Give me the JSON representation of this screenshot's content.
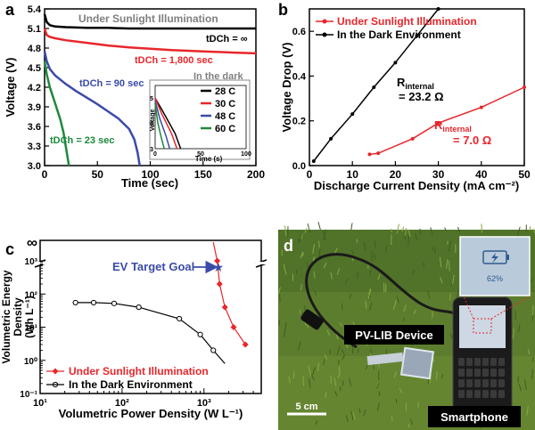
{
  "panels": {
    "a": "a",
    "b": "b",
    "c": "c",
    "d": "d"
  },
  "chart_data": [
    {
      "panel": "a",
      "type": "line",
      "xlabel": "Time (sec)",
      "ylabel": "Voltage (V)",
      "xlim": [
        0,
        200
      ],
      "ylim": [
        3.0,
        5.4
      ],
      "xticks": [
        "0",
        "50",
        "100",
        "150",
        "200"
      ],
      "yticks": [
        "3.0",
        "3.3",
        "3.6",
        "3.9",
        "4.2",
        "4.5",
        "4.8",
        "5.1",
        "5.4"
      ],
      "annotations": {
        "sunlight": "Under Sunlight Illumination",
        "dark": "In the dark",
        "t_inf": "tDCh = ∞",
        "t_1800": "tDCh = 1,800 sec",
        "t_90": "tDCh = 90 sec",
        "t_23": "tDCh = 23 sec"
      },
      "legend": [
        "28 C",
        "30 C",
        "48 C",
        "60 C"
      ],
      "series": [
        {
          "name": "28 C",
          "color": "#000000",
          "x": [
            0,
            2,
            5,
            10,
            20,
            40,
            60,
            80,
            100,
            120,
            150,
            180,
            200
          ],
          "y": [
            5.32,
            5.2,
            5.15,
            5.13,
            5.12,
            5.11,
            5.11,
            5.1,
            5.1,
            5.1,
            5.1,
            5.1,
            5.1
          ]
        },
        {
          "name": "30 C",
          "color": "#e8262b",
          "x": [
            0,
            2,
            5,
            10,
            20,
            40,
            60,
            80,
            100,
            120,
            150,
            180,
            200
          ],
          "y": [
            5.1,
            5.0,
            4.97,
            4.95,
            4.92,
            4.88,
            4.84,
            4.81,
            4.79,
            4.77,
            4.75,
            4.73,
            4.72
          ]
        },
        {
          "name": "48 C",
          "color": "#3b4ba8",
          "x": [
            0,
            2,
            5,
            10,
            20,
            30,
            40,
            50,
            60,
            70,
            80,
            85,
            88,
            90
          ],
          "y": [
            4.75,
            4.6,
            4.48,
            4.38,
            4.25,
            4.14,
            4.04,
            3.94,
            3.83,
            3.72,
            3.56,
            3.4,
            3.2,
            3.0
          ]
        },
        {
          "name": "60 C",
          "color": "#1e8a3c",
          "x": [
            0,
            2,
            5,
            10,
            15,
            18,
            20,
            22,
            23
          ],
          "y": [
            4.6,
            4.4,
            4.2,
            3.95,
            3.7,
            3.5,
            3.3,
            3.1,
            3.0
          ]
        }
      ],
      "inset": {
        "xlabel": "Time (s)",
        "ylabel": "Voltage",
        "xticks": [
          "0",
          "50",
          "100"
        ],
        "yticks": [
          "3",
          "4",
          "5"
        ],
        "series": [
          {
            "name": "28 C",
            "color": "#000000",
            "x": [
              0,
              8,
              22,
              28
            ],
            "y": [
              5.0,
              4.5,
              3.6,
              3.0
            ]
          },
          {
            "name": "30 C",
            "color": "#e8262b",
            "x": [
              0,
              7,
              18,
              24
            ],
            "y": [
              5.0,
              4.4,
              3.6,
              3.0
            ]
          },
          {
            "name": "48 C",
            "color": "#3b4ba8",
            "x": [
              0,
              5,
              12,
              16
            ],
            "y": [
              4.9,
              4.2,
              3.5,
              3.0
            ]
          },
          {
            "name": "60 C",
            "color": "#1e8a3c",
            "x": [
              0,
              3,
              7,
              10
            ],
            "y": [
              4.8,
              4.0,
              3.4,
              3.0
            ]
          }
        ]
      }
    },
    {
      "panel": "b",
      "type": "line",
      "xlabel": "Discharge Current Density (mA cm⁻²)",
      "ylabel": "Voltage Drop (V)",
      "xlim": [
        0,
        50
      ],
      "ylim": [
        0,
        0.7
      ],
      "xticks": [
        "0",
        "10",
        "20",
        "30",
        "40",
        "50"
      ],
      "yticks": [
        "0.0",
        "0.2",
        "0.4",
        "0.6"
      ],
      "legend": [
        "Under Sunlight Illumination",
        "In the Dark  Environment"
      ],
      "annotations": {
        "r_dark_label": "R",
        "r_dark_sub": "internal",
        "r_dark_value": "= 23.2 Ω",
        "r_sun_label": "R",
        "r_sun_sub": "internal",
        "r_sun_value": "= 7.0 Ω"
      },
      "series": [
        {
          "name": "Under Sunlight Illumination",
          "color": "#e8262b",
          "x": [
            14,
            16,
            24,
            30,
            40,
            50
          ],
          "y": [
            0.05,
            0.055,
            0.12,
            0.19,
            0.26,
            0.35
          ]
        },
        {
          "name": "In the Dark  Environment",
          "color": "#000000",
          "x": [
            1,
            5,
            10,
            15,
            20,
            25,
            30
          ],
          "y": [
            0.02,
            0.12,
            0.23,
            0.35,
            0.46,
            0.58,
            0.7
          ]
        }
      ]
    },
    {
      "panel": "c",
      "type": "line",
      "xlabel": "Volumetric Power Density (W L⁻¹)",
      "ylabel_lines": [
        "Volumetric Energy",
        "Density",
        "(Wh L⁻¹)"
      ],
      "scale": "log-log",
      "xlim": [
        10,
        5000
      ],
      "ylim": [
        0.1,
        1000
      ],
      "xticks": [
        "10¹",
        "10²",
        "10³"
      ],
      "yticks": [
        "10⁻¹",
        "10⁰",
        "10¹",
        "10²",
        "10³"
      ],
      "infinity_tick": "∞",
      "annotations": {
        "target": "EV Target Goal"
      },
      "legend": [
        "Under Sunlight Illumination",
        "In the Dark Environment"
      ],
      "series": [
        {
          "name": "Under Sunlight Illumination",
          "color": "#e8262b",
          "x": [
            1300,
            1450,
            1550,
            1800,
            2300,
            3200
          ],
          "y": [
            5000,
            1000,
            200,
            40,
            10,
            3
          ]
        },
        {
          "name": "In the Dark Environment",
          "color": "#000000",
          "x": [
            27,
            45,
            80,
            160,
            500,
            900,
            1300,
            1800
          ],
          "y": [
            55,
            55,
            52,
            40,
            18,
            6,
            2,
            0.8
          ]
        }
      ],
      "target_point": {
        "x": 1500,
        "y": 1000,
        "color": "#3b4ba8"
      }
    }
  ],
  "photo": {
    "device_label": "PV-LIB Device",
    "phone_label": "Smartphone",
    "scale_bar": "5 cm",
    "battery_percent": "62%"
  }
}
